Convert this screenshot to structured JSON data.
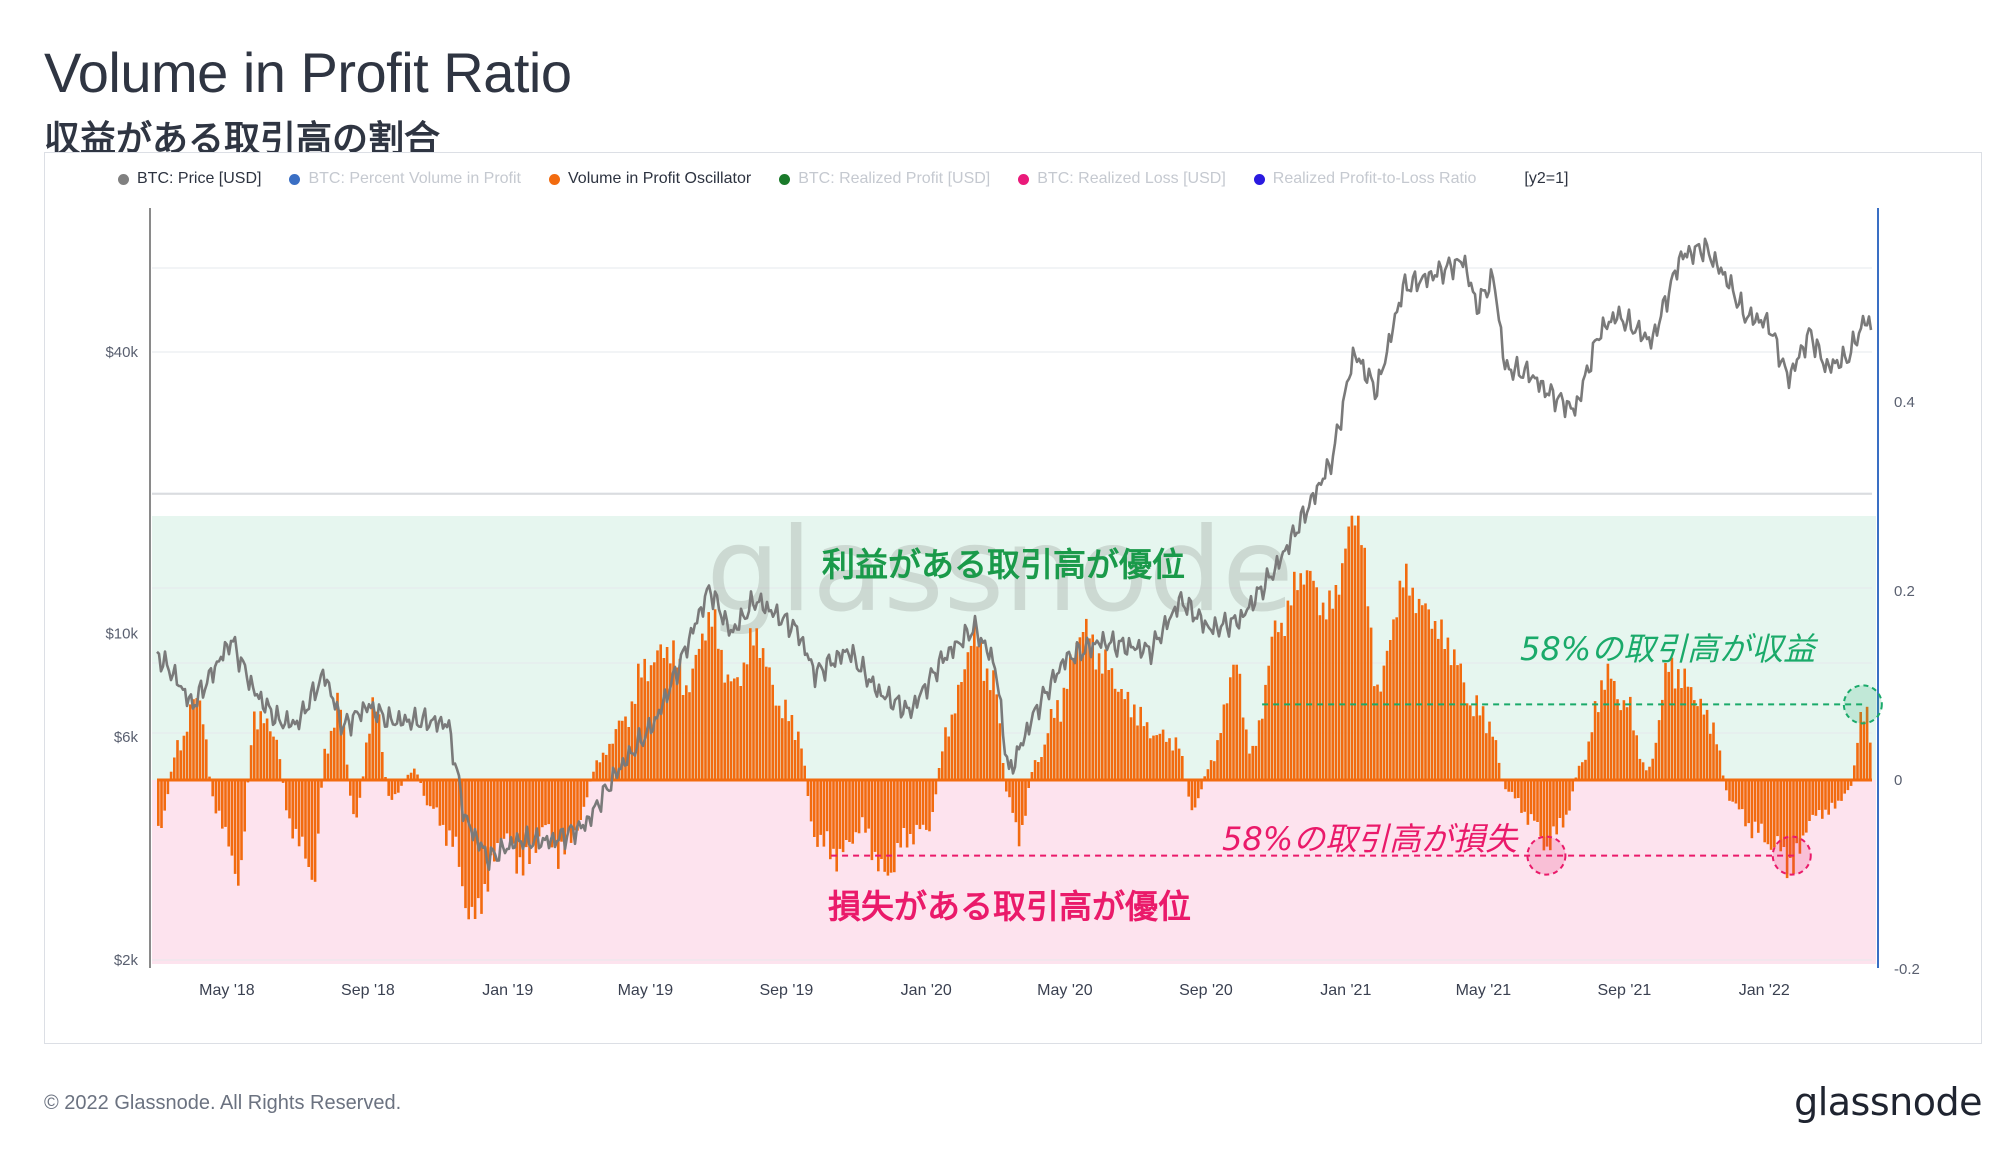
{
  "header": {
    "title": "Volume in Profit Ratio",
    "subtitle": "収益がある取引高の割合"
  },
  "legend": {
    "items": [
      {
        "label": "BTC: Price [USD]",
        "color": "#808080",
        "active": true
      },
      {
        "label": "BTC: Percent Volume in Profit",
        "color": "#3a6fc4",
        "active": false
      },
      {
        "label": "Volume in Profit Oscillator",
        "color": "#f26b0f",
        "active": true
      },
      {
        "label": "BTC: Realized Profit [USD]",
        "color": "#1a7a2a",
        "active": false
      },
      {
        "label": "BTC: Realized Loss [USD]",
        "color": "#ea1a7a",
        "active": false
      },
      {
        "label": "Realized Profit-to-Loss Ratio",
        "color": "#2a1ae0",
        "active": false
      }
    ],
    "extra": "[y2=1]"
  },
  "annotations": {
    "profit_zone": "利益がある取引高が優位",
    "loss_zone": "損失がある取引高が優位",
    "profit_threshold": "58%の取引高が収益",
    "loss_threshold": "58%の取引高が損失"
  },
  "watermark": "glassnode",
  "footer": {
    "copyright": "© 2022 Glassnode. All Rights Reserved.",
    "logo": "glassnode"
  },
  "colors": {
    "price_line": "#808080",
    "oscillator": "#f26b0f",
    "profit_zone_bg": "#e6f6ef",
    "loss_zone_bg": "#fde3ee",
    "profit_text": "#1a9a4a",
    "loss_text": "#ea1a6a",
    "right_axis": "#3a6fc4"
  },
  "chart_data": {
    "type": "line",
    "x_tick_labels": [
      "May '18",
      "Sep '18",
      "Jan '19",
      "May '19",
      "Sep '19",
      "Jan '20",
      "May '20",
      "Sep '20",
      "Jan '21",
      "May '21",
      "Sep '21",
      "Jan '22"
    ],
    "y_left": {
      "label": "",
      "scale": "log",
      "tick_labels": [
        "$2k",
        "$6k",
        "$10k",
        "$40k"
      ],
      "tick_values": [
        2000,
        6000,
        10000,
        40000
      ]
    },
    "y_right": {
      "label": "",
      "tick_labels": [
        "-0.2",
        "0",
        "0.2",
        "0.4"
      ],
      "tick_values": [
        -0.2,
        0,
        0.2,
        0.4
      ]
    },
    "thresholds": {
      "profit": 0.08,
      "loss": -0.08
    },
    "series": [
      {
        "name": "BTC: Price [USD]",
        "axis": "left",
        "style": "line",
        "points": [
          [
            "2018-03-01",
            9000
          ],
          [
            "2018-03-15",
            8200
          ],
          [
            "2018-04-01",
            7000
          ],
          [
            "2018-04-15",
            8000
          ],
          [
            "2018-05-05",
            9700
          ],
          [
            "2018-05-25",
            7500
          ],
          [
            "2018-06-15",
            6500
          ],
          [
            "2018-07-01",
            6400
          ],
          [
            "2018-07-25",
            8200
          ],
          [
            "2018-08-10",
            6300
          ],
          [
            "2018-09-01",
            7000
          ],
          [
            "2018-09-20",
            6500
          ],
          [
            "2018-10-20",
            6500
          ],
          [
            "2018-11-10",
            6400
          ],
          [
            "2018-11-25",
            4000
          ],
          [
            "2018-12-15",
            3300
          ],
          [
            "2019-01-10",
            3600
          ],
          [
            "2019-02-10",
            3600
          ],
          [
            "2019-03-10",
            3900
          ],
          [
            "2019-04-05",
            5000
          ],
          [
            "2019-05-10",
            6500
          ],
          [
            "2019-05-30",
            8500
          ],
          [
            "2019-06-26",
            12500
          ],
          [
            "2019-07-15",
            10000
          ],
          [
            "2019-08-05",
            11800
          ],
          [
            "2019-09-10",
            10200
          ],
          [
            "2019-09-26",
            8200
          ],
          [
            "2019-10-25",
            9200
          ],
          [
            "2019-11-20",
            7500
          ],
          [
            "2019-12-18",
            6800
          ],
          [
            "2020-01-15",
            8800
          ],
          [
            "2020-02-12",
            10300
          ],
          [
            "2020-03-01",
            8600
          ],
          [
            "2020-03-13",
            5000
          ],
          [
            "2020-04-05",
            6800
          ],
          [
            "2020-05-01",
            8800
          ],
          [
            "2020-06-01",
            9600
          ],
          [
            "2020-07-15",
            9200
          ],
          [
            "2020-08-10",
            11800
          ],
          [
            "2020-09-05",
            10200
          ],
          [
            "2020-10-01",
            10700
          ],
          [
            "2020-11-01",
            13800
          ],
          [
            "2020-12-01",
            19000
          ],
          [
            "2020-12-20",
            23500
          ],
          [
            "2021-01-08",
            40000
          ],
          [
            "2021-01-28",
            33000
          ],
          [
            "2021-02-20",
            55000
          ],
          [
            "2021-03-15",
            58000
          ],
          [
            "2021-04-14",
            63000
          ],
          [
            "2021-04-25",
            50000
          ],
          [
            "2021-05-10",
            58000
          ],
          [
            "2021-05-20",
            37000
          ],
          [
            "2021-06-10",
            36000
          ],
          [
            "2021-06-25",
            33000
          ],
          [
            "2021-07-20",
            30000
          ],
          [
            "2021-08-10",
            44000
          ],
          [
            "2021-08-25",
            48000
          ],
          [
            "2021-09-10",
            45000
          ],
          [
            "2021-09-25",
            42000
          ],
          [
            "2021-10-20",
            64000
          ],
          [
            "2021-11-10",
            67000
          ],
          [
            "2021-11-30",
            57000
          ],
          [
            "2021-12-15",
            48000
          ],
          [
            "2022-01-05",
            46000
          ],
          [
            "2022-01-22",
            35000
          ],
          [
            "2022-02-10",
            44000
          ],
          [
            "2022-02-24",
            37000
          ],
          [
            "2022-03-15",
            39000
          ],
          [
            "2022-03-30",
            47000
          ],
          [
            "2022-04-05",
            45000
          ]
        ]
      },
      {
        "name": "Volume in Profit Oscillator",
        "axis": "right",
        "style": "area",
        "points": [
          [
            "2018-03-01",
            -0.05
          ],
          [
            "2018-03-20",
            0.04
          ],
          [
            "2018-04-05",
            0.09
          ],
          [
            "2018-04-20",
            -0.03
          ],
          [
            "2018-05-10",
            -0.1
          ],
          [
            "2018-05-25",
            0.07
          ],
          [
            "2018-06-10",
            0.05
          ],
          [
            "2018-06-25",
            -0.05
          ],
          [
            "2018-07-15",
            -0.1
          ],
          [
            "2018-07-25",
            0.03
          ],
          [
            "2018-08-05",
            0.08
          ],
          [
            "2018-08-20",
            -0.04
          ],
          [
            "2018-09-05",
            0.08
          ],
          [
            "2018-09-20",
            -0.02
          ],
          [
            "2018-10-10",
            0.01
          ],
          [
            "2018-10-25",
            -0.03
          ],
          [
            "2018-11-15",
            -0.07
          ],
          [
            "2018-11-28",
            -0.15
          ],
          [
            "2018-12-10",
            -0.12
          ],
          [
            "2018-12-25",
            -0.06
          ],
          [
            "2019-01-15",
            -0.09
          ],
          [
            "2019-02-01",
            -0.05
          ],
          [
            "2019-02-15",
            -0.08
          ],
          [
            "2019-03-01",
            -0.05
          ],
          [
            "2019-03-20",
            0.02
          ],
          [
            "2019-04-10",
            0.06
          ],
          [
            "2019-05-01",
            0.12
          ],
          [
            "2019-05-20",
            0.14
          ],
          [
            "2019-06-05",
            0.1
          ],
          [
            "2019-06-25",
            0.17
          ],
          [
            "2019-07-15",
            0.1
          ],
          [
            "2019-08-05",
            0.15
          ],
          [
            "2019-08-25",
            0.08
          ],
          [
            "2019-09-10",
            0.05
          ],
          [
            "2019-09-25",
            -0.06
          ],
          [
            "2019-10-15",
            -0.08
          ],
          [
            "2019-11-05",
            -0.05
          ],
          [
            "2019-11-25",
            -0.1
          ],
          [
            "2019-12-15",
            -0.06
          ],
          [
            "2020-01-01",
            -0.05
          ],
          [
            "2020-01-20",
            0.06
          ],
          [
            "2020-02-10",
            0.15
          ],
          [
            "2020-02-28",
            0.1
          ],
          [
            "2020-03-12",
            -0.02
          ],
          [
            "2020-03-20",
            -0.06
          ],
          [
            "2020-04-05",
            0.02
          ],
          [
            "2020-04-25",
            0.08
          ],
          [
            "2020-05-15",
            0.16
          ],
          [
            "2020-06-05",
            0.12
          ],
          [
            "2020-06-25",
            0.08
          ],
          [
            "2020-07-15",
            0.05
          ],
          [
            "2020-08-05",
            0.04
          ],
          [
            "2020-08-20",
            -0.03
          ],
          [
            "2020-09-05",
            0.02
          ],
          [
            "2020-09-25",
            0.12
          ],
          [
            "2020-10-10",
            0.03
          ],
          [
            "2020-11-01",
            0.16
          ],
          [
            "2020-11-25",
            0.22
          ],
          [
            "2020-12-15",
            0.18
          ],
          [
            "2021-01-10",
            0.28
          ],
          [
            "2021-01-28",
            0.1
          ],
          [
            "2021-02-20",
            0.21
          ],
          [
            "2021-03-10",
            0.18
          ],
          [
            "2021-04-01",
            0.14
          ],
          [
            "2021-04-20",
            0.08
          ],
          [
            "2021-05-05",
            0.06
          ],
          [
            "2021-05-20",
            -0.01
          ],
          [
            "2021-06-10",
            -0.04
          ],
          [
            "2021-06-25",
            -0.07
          ],
          [
            "2021-07-10",
            -0.04
          ],
          [
            "2021-07-25",
            0.02
          ],
          [
            "2021-08-15",
            0.11
          ],
          [
            "2021-09-01",
            0.08
          ],
          [
            "2021-09-20",
            0.01
          ],
          [
            "2021-10-10",
            0.12
          ],
          [
            "2021-10-25",
            0.1
          ],
          [
            "2021-11-15",
            0.06
          ],
          [
            "2021-12-01",
            -0.02
          ],
          [
            "2021-12-20",
            -0.05
          ],
          [
            "2022-01-10",
            -0.07
          ],
          [
            "2022-01-25",
            -0.09
          ],
          [
            "2022-02-10",
            -0.04
          ],
          [
            "2022-03-01",
            -0.03
          ],
          [
            "2022-03-15",
            -0.01
          ],
          [
            "2022-03-28",
            0.08
          ],
          [
            "2022-04-05",
            0.03
          ]
        ]
      }
    ]
  }
}
